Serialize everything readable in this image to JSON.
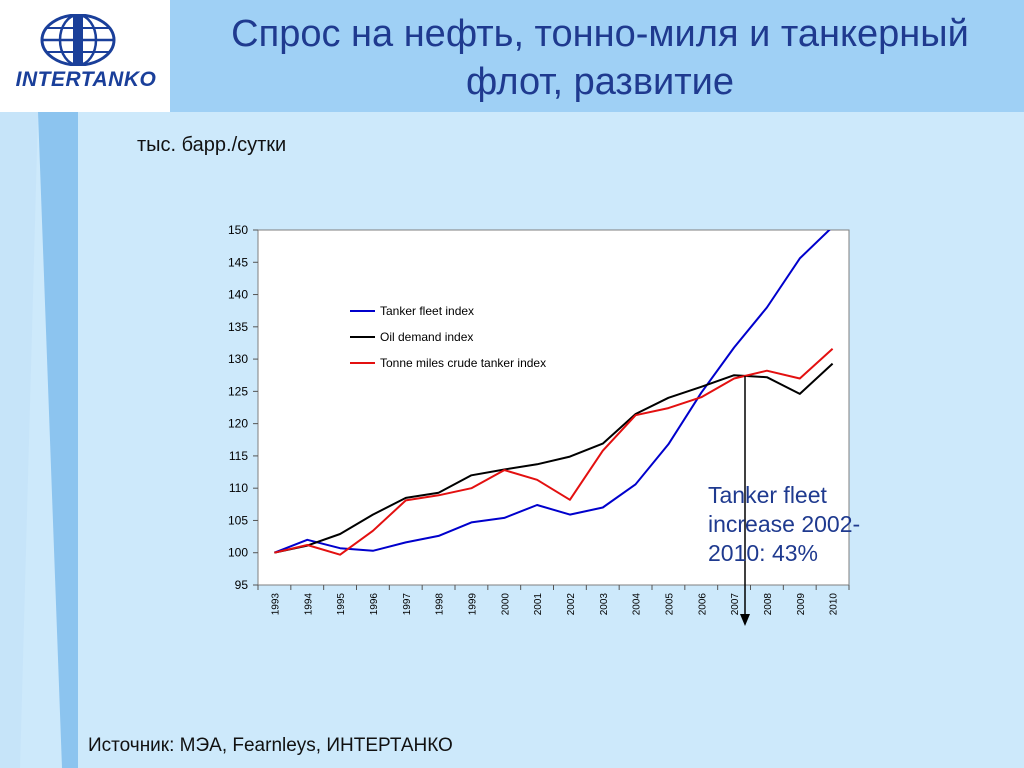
{
  "header": {
    "logo_text": "INTERTANKO",
    "title_line1": "Спрос на нефть, тонно-миля и танкерный",
    "title_line2": "флот, развитие"
  },
  "unit_label": "тыс. барр./сутки",
  "annotation": {
    "line1": "Tanker fleet",
    "line2": "increase 2002-",
    "line3": "2010: 43%"
  },
  "source": "Источник: МЭА, Fearnleys, ИНТЕРТАНКО",
  "colors": {
    "tanker_fleet": "#0000cc",
    "oil_demand": "#000000",
    "tonne_miles": "#e31010",
    "title": "#1f3a8f"
  },
  "chart_data": {
    "type": "line",
    "categories": [
      "1993",
      "1994",
      "1995",
      "1996",
      "1997",
      "1998",
      "1999",
      "2000",
      "2001",
      "2002",
      "2003",
      "2004",
      "2005",
      "2006",
      "2007",
      "2008",
      "2009",
      "2010"
    ],
    "ylim": [
      95,
      150
    ],
    "yticks": [
      95,
      100,
      105,
      110,
      115,
      120,
      125,
      130,
      135,
      140,
      145,
      150
    ],
    "legend_position": "top-center",
    "grid": false,
    "series": [
      {
        "name": "Tanker fleet index",
        "color": "#0000cc",
        "values": [
          100,
          102,
          100.7,
          100.3,
          101.6,
          102.6,
          104.7,
          105.4,
          107.4,
          105.9,
          107,
          110.6,
          116.8,
          124.8,
          131.8,
          138,
          145.6,
          150.5
        ]
      },
      {
        "name": "Oil demand index",
        "color": "#000000",
        "values": [
          100,
          101.1,
          102.9,
          105.9,
          108.5,
          109.3,
          112,
          112.9,
          113.7,
          114.9,
          116.9,
          121.5,
          124,
          125.7,
          127.5,
          127.2,
          124.6,
          129.3
        ]
      },
      {
        "name": "Tonne miles crude tanker index",
        "color": "#e31010",
        "values": [
          100,
          101.2,
          99.7,
          103.4,
          108.1,
          108.9,
          110,
          112.8,
          111.3,
          108.2,
          115.8,
          121.3,
          122.4,
          124.1,
          127,
          128.2,
          127,
          131.6
        ]
      }
    ]
  }
}
